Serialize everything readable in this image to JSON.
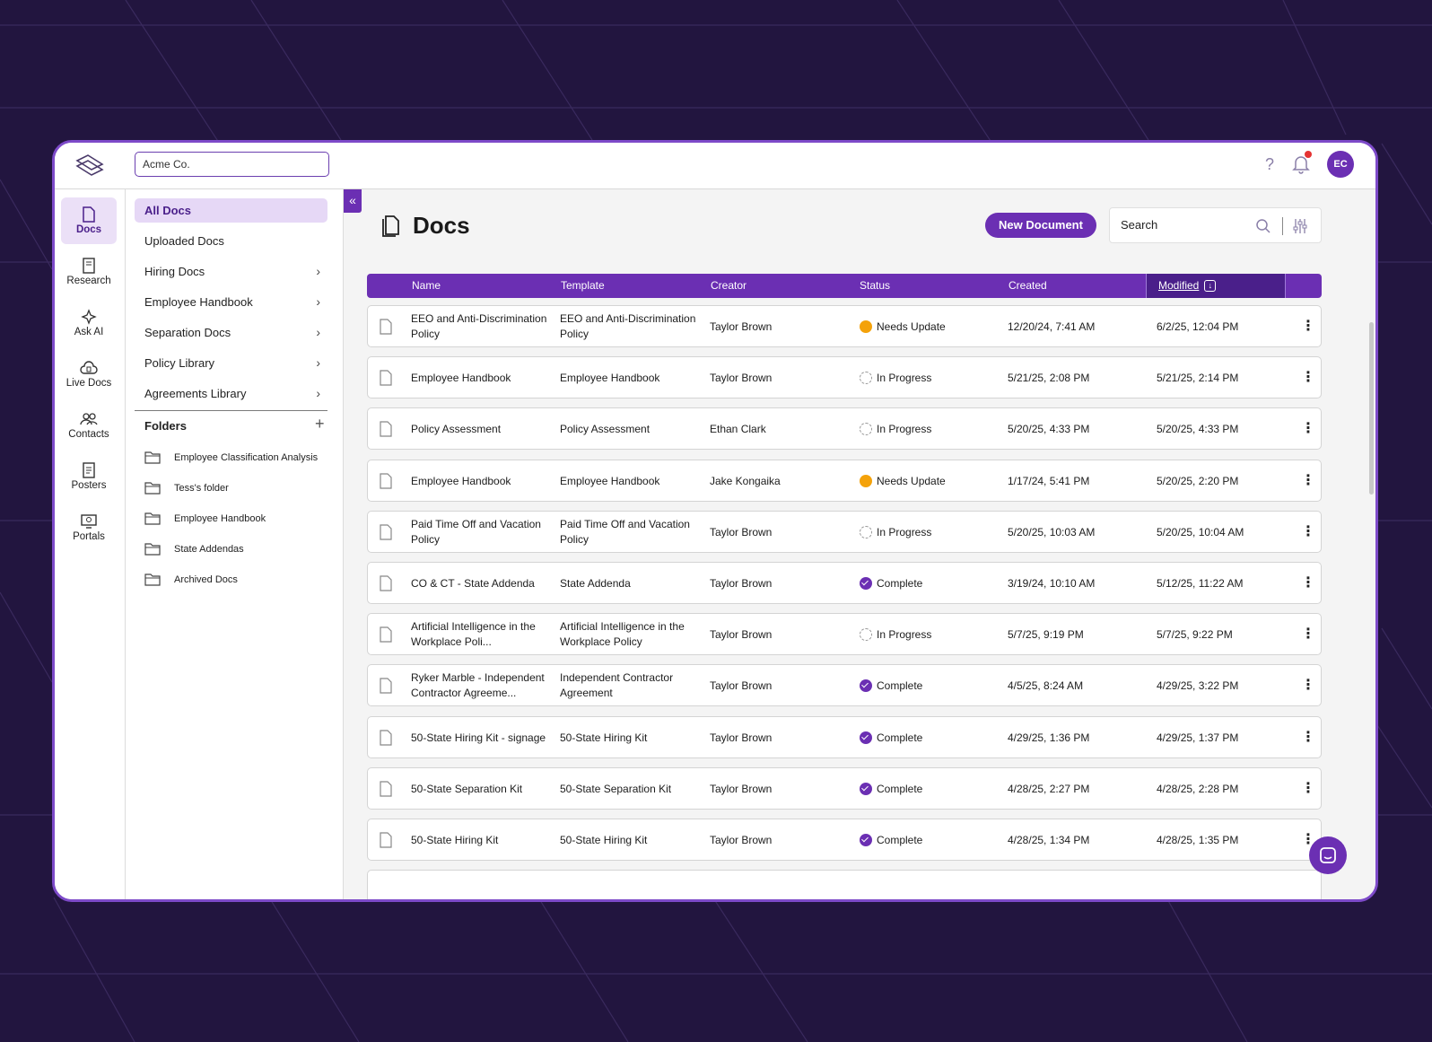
{
  "org": {
    "name": "Acme Co."
  },
  "header": {
    "help_icon": "question-mark-icon",
    "bell_icon": "bell-icon",
    "avatar_initials": "EC"
  },
  "rail": [
    {
      "label": "Docs",
      "icon": "document-icon",
      "active": true
    },
    {
      "label": "Research",
      "icon": "book-icon"
    },
    {
      "label": "Ask AI",
      "icon": "sparkle-icon"
    },
    {
      "label": "Live Docs",
      "icon": "cloud-doc-icon"
    },
    {
      "label": "Contacts",
      "icon": "contacts-icon"
    },
    {
      "label": "Posters",
      "icon": "poster-icon"
    },
    {
      "label": "Portals",
      "icon": "portal-icon"
    }
  ],
  "nav": {
    "items": [
      {
        "label": "All Docs",
        "active": true
      },
      {
        "label": "Uploaded Docs"
      },
      {
        "label": "Hiring Docs",
        "has_chevron": true
      },
      {
        "label": "Employee Handbook",
        "has_chevron": true
      },
      {
        "label": "Separation Docs",
        "has_chevron": true
      },
      {
        "label": "Policy Library",
        "has_chevron": true
      },
      {
        "label": "Agreements Library",
        "has_chevron": true
      }
    ],
    "folders_heading": "Folders",
    "folders": [
      "Employee Classification Analysis",
      "Tess's folder",
      "Employee Handbook",
      "State Addendas",
      "Archived Docs"
    ]
  },
  "main": {
    "title": "Docs",
    "new_doc_label": "New Document",
    "search_placeholder": "Search",
    "columns": [
      "Name",
      "Template",
      "Creator",
      "Status",
      "Created",
      "Modified"
    ],
    "rows": [
      {
        "name": "EEO and Anti-Discrimination Policy",
        "template": "EEO and Anti-Discrimination Policy",
        "creator": "Taylor Brown",
        "status": "Needs Update",
        "status_kind": "needs",
        "created": "12/20/24, 7:41 AM",
        "modified": "6/2/25, 12:04 PM"
      },
      {
        "name": "Employee Handbook",
        "template": "Employee Handbook",
        "creator": "Taylor Brown",
        "status": "In Progress",
        "status_kind": "progress",
        "created": "5/21/25, 2:08 PM",
        "modified": "5/21/25, 2:14 PM"
      },
      {
        "name": "Policy Assessment",
        "template": "Policy Assessment",
        "creator": "Ethan Clark",
        "status": "In Progress",
        "status_kind": "progress",
        "created": "5/20/25, 4:33 PM",
        "modified": "5/20/25, 4:33 PM"
      },
      {
        "name": "Employee Handbook",
        "template": "Employee Handbook",
        "creator": "Jake Kongaika",
        "status": "Needs Update",
        "status_kind": "needs",
        "created": "1/17/24, 5:41 PM",
        "modified": "5/20/25, 2:20 PM"
      },
      {
        "name": "Paid Time Off and Vacation Policy",
        "template": "Paid Time Off and Vacation Policy",
        "creator": "Taylor Brown",
        "status": "In Progress",
        "status_kind": "progress",
        "created": "5/20/25, 10:03 AM",
        "modified": "5/20/25, 10:04 AM"
      },
      {
        "name": "CO & CT - State Addenda",
        "template": "State Addenda",
        "creator": "Taylor Brown",
        "status": "Complete",
        "status_kind": "complete",
        "created": "3/19/24, 10:10 AM",
        "modified": "5/12/25, 11:22 AM"
      },
      {
        "name": "Artificial Intelligence in the Workplace Poli...",
        "template": "Artificial Intelligence in the Workplace Policy",
        "creator": "Taylor Brown",
        "status": "In Progress",
        "status_kind": "progress",
        "created": "5/7/25, 9:19 PM",
        "modified": "5/7/25, 9:22 PM"
      },
      {
        "name": "Ryker Marble - Independent Contractor Agreeme...",
        "template": "Independent Contractor Agreement",
        "creator": "Taylor Brown",
        "status": "Complete",
        "status_kind": "complete",
        "created": "4/5/25, 8:24 AM",
        "modified": "4/29/25, 3:22 PM"
      },
      {
        "name": "50-State Hiring Kit - signage",
        "template": "50-State Hiring Kit",
        "creator": "Taylor Brown",
        "status": "Complete",
        "status_kind": "complete",
        "created": "4/29/25, 1:36 PM",
        "modified": "4/29/25, 1:37 PM"
      },
      {
        "name": "50-State Separation Kit",
        "template": "50-State Separation Kit",
        "creator": "Taylor Brown",
        "status": "Complete",
        "status_kind": "complete",
        "created": "4/28/25, 2:27 PM",
        "modified": "4/28/25, 2:28 PM"
      },
      {
        "name": "50-State Hiring Kit",
        "template": "50-State Hiring Kit",
        "creator": "Taylor Brown",
        "status": "Complete",
        "status_kind": "complete",
        "created": "4/28/25, 1:34 PM",
        "modified": "4/28/25, 1:35 PM"
      }
    ]
  },
  "colors": {
    "accent": "#6b2fb3",
    "accent_dark": "#4a1f8a",
    "needs_update": "#f4a20a",
    "background": "#22153f"
  }
}
